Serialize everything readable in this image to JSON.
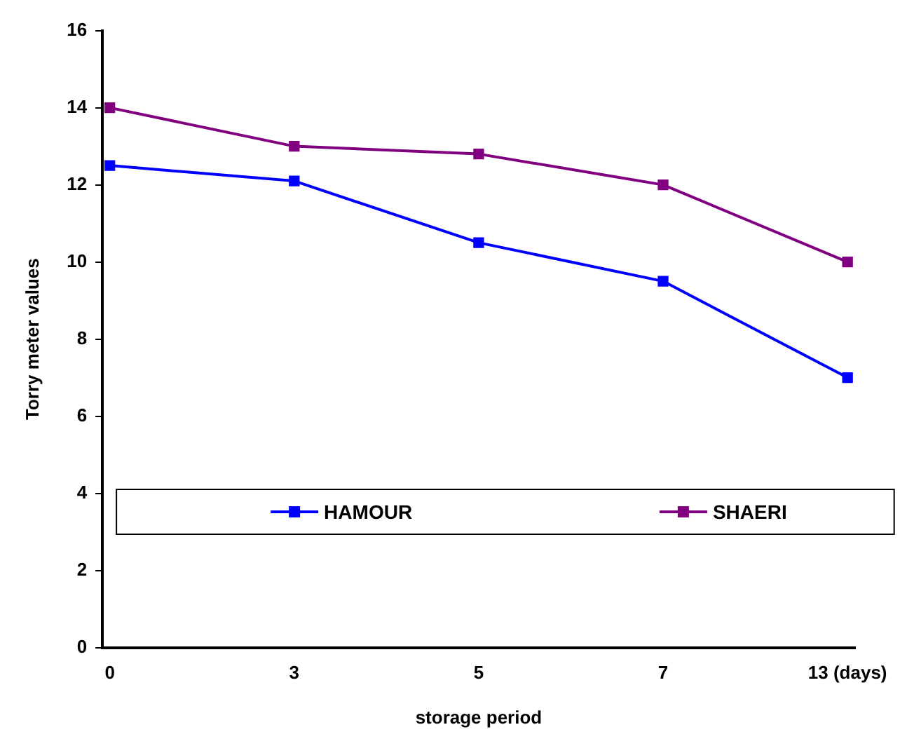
{
  "chart_data": {
    "type": "line",
    "xlabel": "storage period",
    "ylabel": "Torry meter values",
    "categories": [
      "0",
      "3",
      "5",
      "7",
      "13 (days)"
    ],
    "series": [
      {
        "name": "HAMOUR",
        "color": "#0000ff",
        "values": [
          12.5,
          12.1,
          10.5,
          9.5,
          7
        ]
      },
      {
        "name": "SHAERI",
        "color": "#800080",
        "values": [
          14,
          13,
          12.8,
          12,
          10
        ]
      }
    ],
    "ylim": [
      0,
      16
    ],
    "yticks": [
      0,
      2,
      4,
      6,
      8,
      10,
      12,
      14,
      16
    ],
    "grid": false,
    "legend": "bottom",
    "marker": "square",
    "line_style": "solid"
  }
}
